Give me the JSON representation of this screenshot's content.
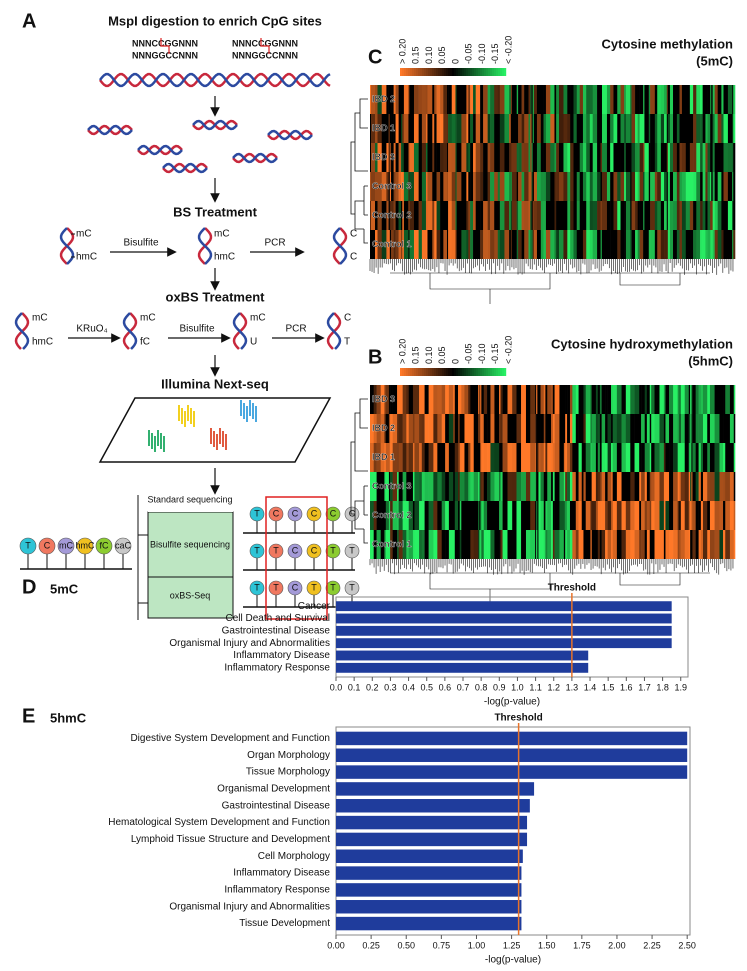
{
  "panel_a": {
    "label": "A",
    "title": "MspI digestion to enrich CpG sites",
    "site_top": "NNNCCGGNNN",
    "site_bottom": "NNNGGCCNNN",
    "bs_title": "BS Treatment",
    "mc": "mC",
    "hmc": "hmC",
    "bisulfite": "Bisulfite",
    "pcr": "PCR",
    "c": "C",
    "oxbs_title": "oxBS Treatment",
    "kruo4": "KRuO₄",
    "fc": "fC",
    "u": "U",
    "t": "T",
    "seq_title": "Illumina Next-seq",
    "standard": "Standard sequencing",
    "bisulfite_seq": "Bisulfite sequencing",
    "oxbs_seq": "oxBS-Seq",
    "bases": [
      "T",
      "C",
      "mC",
      "hmC",
      "fC",
      "caC"
    ],
    "reads": [
      [
        "T",
        "C",
        "C",
        "C",
        "C",
        "C"
      ],
      [
        "T",
        "T",
        "C",
        "C",
        "T",
        "T"
      ],
      [
        "T",
        "T",
        "C",
        "T",
        "T",
        "T"
      ]
    ]
  },
  "heatmaps": [
    {
      "label": "C",
      "title": "Cytosine methylation",
      "subtitle": "(5mC)",
      "scale_ticks": [
        "> 0.20",
        "0.15",
        "0.10",
        "0.05",
        "0",
        "-0.05",
        "-0.10",
        "-0.15",
        "< -0.20"
      ],
      "rows": [
        "IBD 2",
        "IBD 1",
        "IBD 3",
        "Control 3",
        "Control 2",
        "Control 1"
      ]
    },
    {
      "label": "B",
      "title": "Cytosine hydroxymethylation",
      "subtitle": "(5hmC)",
      "scale_ticks": [
        "> 0.20",
        "0.15",
        "0.10",
        "0.05",
        "0",
        "-0.05",
        "-0.10",
        "-0.15",
        "< -0.20"
      ],
      "rows": [
        "IBD 3",
        "IBD 2",
        "IBD 1",
        "Control 3",
        "Control 2",
        "Control 1"
      ]
    }
  ],
  "chart_data": [
    {
      "type": "bar",
      "label": "D",
      "title": "5mC",
      "xlabel": "-log(p-value)",
      "color": "#1f3c9c",
      "categories": [
        "Cancer",
        "Cell Death and Survival",
        "Gastrointestinal Disease",
        "Organismal Injury and Abnormalities",
        "Inflammatory Disease",
        "Inflammatory Response"
      ],
      "values": [
        1.85,
        1.85,
        1.85,
        1.85,
        1.39,
        1.39
      ],
      "xlim": [
        0,
        1.94
      ],
      "xticks": [
        {
          "value": 0,
          "label": "0.0"
        },
        0.1,
        0.2,
        0.3,
        0.4,
        0.5,
        0.6,
        0.7,
        0.8,
        0.9,
        {
          "value": 1,
          "label": "1.0"
        },
        1.1,
        1.2,
        1.3,
        1.4,
        1.5,
        1.6,
        1.7,
        1.8,
        1.9
      ],
      "threshold": {
        "value": 1.3,
        "label": "Threshold",
        "color": "#e8732a"
      }
    },
    {
      "type": "bar",
      "label": "E",
      "title": "5hmC",
      "xlabel": "-log(p-value)",
      "color": "#1f3c9c",
      "categories": [
        "Digestive System Development and Function",
        "Organ Morphology",
        "Tissue Morphology",
        "Organismal Development",
        "Gastrointestinal Disease",
        "Hematological System Development and Function",
        "Lymphoid Tissue Structure and Development",
        "Cell Morphology",
        "Inflammatory Disease",
        "Inflammatory Response",
        "Organismal Injury and Abnormalities",
        "Tissue Development"
      ],
      "values": [
        2.5,
        2.5,
        2.5,
        1.41,
        1.38,
        1.36,
        1.36,
        1.33,
        1.32,
        1.32,
        1.32,
        1.32
      ],
      "xlim": [
        0,
        2.52
      ],
      "xticks": [
        {
          "value": 0,
          "label": "0.00"
        },
        0.25,
        {
          "value": 0.5,
          "label": "0.50"
        },
        0.75,
        {
          "value": 1,
          "label": "1.00"
        },
        1.25,
        {
          "value": 1.5,
          "label": "1.50"
        },
        1.75,
        {
          "value": 2,
          "label": "2.00"
        },
        2.25,
        {
          "value": 2.5,
          "label": "2.50"
        }
      ],
      "threshold": {
        "value": 1.3,
        "label": "Threshold",
        "color": "#e8732a"
      }
    }
  ]
}
